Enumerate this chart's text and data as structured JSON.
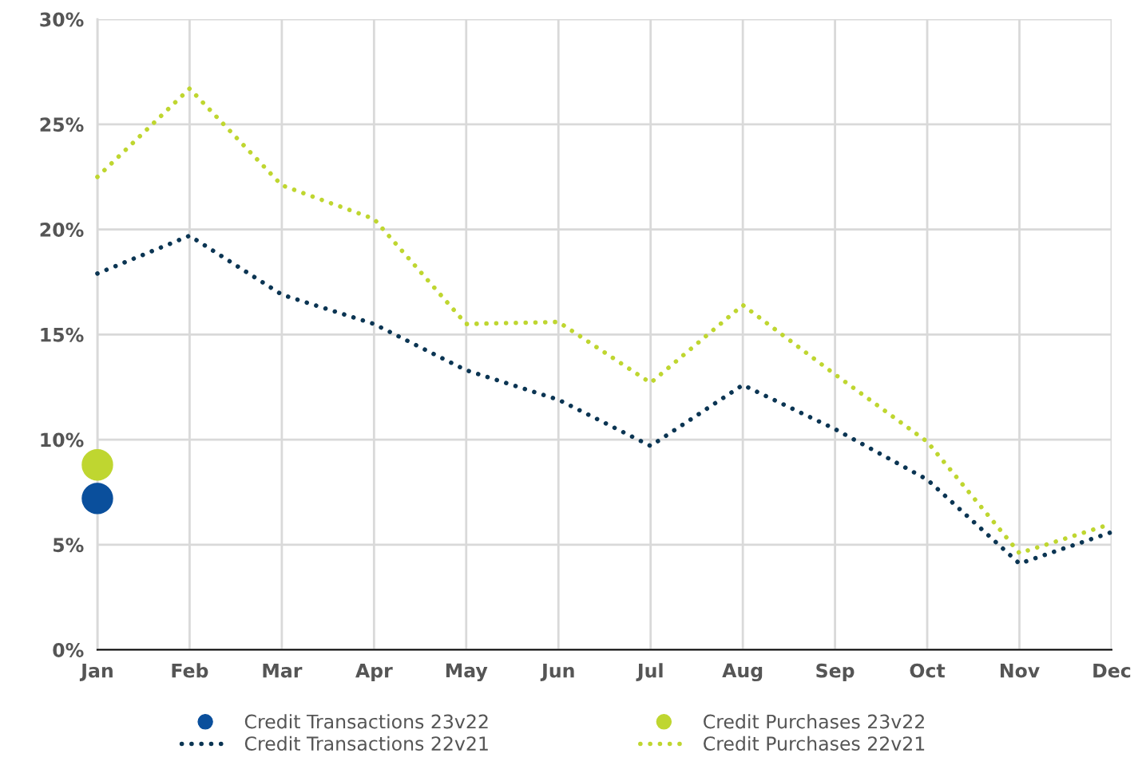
{
  "chart_data": {
    "type": "line",
    "categories": [
      "Jan",
      "Feb",
      "Mar",
      "Apr",
      "May",
      "Jun",
      "Jul",
      "Aug",
      "Sep",
      "Oct",
      "Nov",
      "Dec"
    ],
    "series": [
      {
        "name": "Credit Transactions 23v22",
        "type": "scatter",
        "marker": "circle",
        "color": "#0a4f9c",
        "values": [
          7.2,
          null,
          null,
          null,
          null,
          null,
          null,
          null,
          null,
          null,
          null,
          null
        ]
      },
      {
        "name": "Credit Transactions 22v21",
        "line_style": "dotted",
        "marker": "none",
        "color": "#0b3553",
        "values": [
          17.9,
          19.7,
          16.9,
          15.5,
          13.3,
          11.9,
          9.7,
          12.6,
          10.5,
          8.1,
          4.1,
          5.6
        ]
      },
      {
        "name": "Credit Purchases 23v22",
        "type": "scatter",
        "marker": "circle",
        "color": "#bfd630",
        "values": [
          8.8,
          null,
          null,
          null,
          null,
          null,
          null,
          null,
          null,
          null,
          null,
          null
        ]
      },
      {
        "name": "Credit Purchases 22v21",
        "line_style": "dotted",
        "marker": "none",
        "color": "#bfd630",
        "values": [
          22.5,
          26.7,
          22.1,
          20.5,
          15.5,
          15.6,
          12.7,
          16.4,
          13.1,
          9.9,
          4.6,
          6.0
        ]
      }
    ],
    "ylim": [
      0,
      30
    ],
    "yticks": [
      {
        "value": 0,
        "label": "0%"
      },
      {
        "value": 5,
        "label": "5%"
      },
      {
        "value": 10,
        "label": "10%"
      },
      {
        "value": 15,
        "label": "15%"
      },
      {
        "value": 20,
        "label": "20%"
      },
      {
        "value": 25,
        "label": "25%"
      },
      {
        "value": 30,
        "label": "30%"
      }
    ],
    "grid": true,
    "legend": "bottom"
  }
}
